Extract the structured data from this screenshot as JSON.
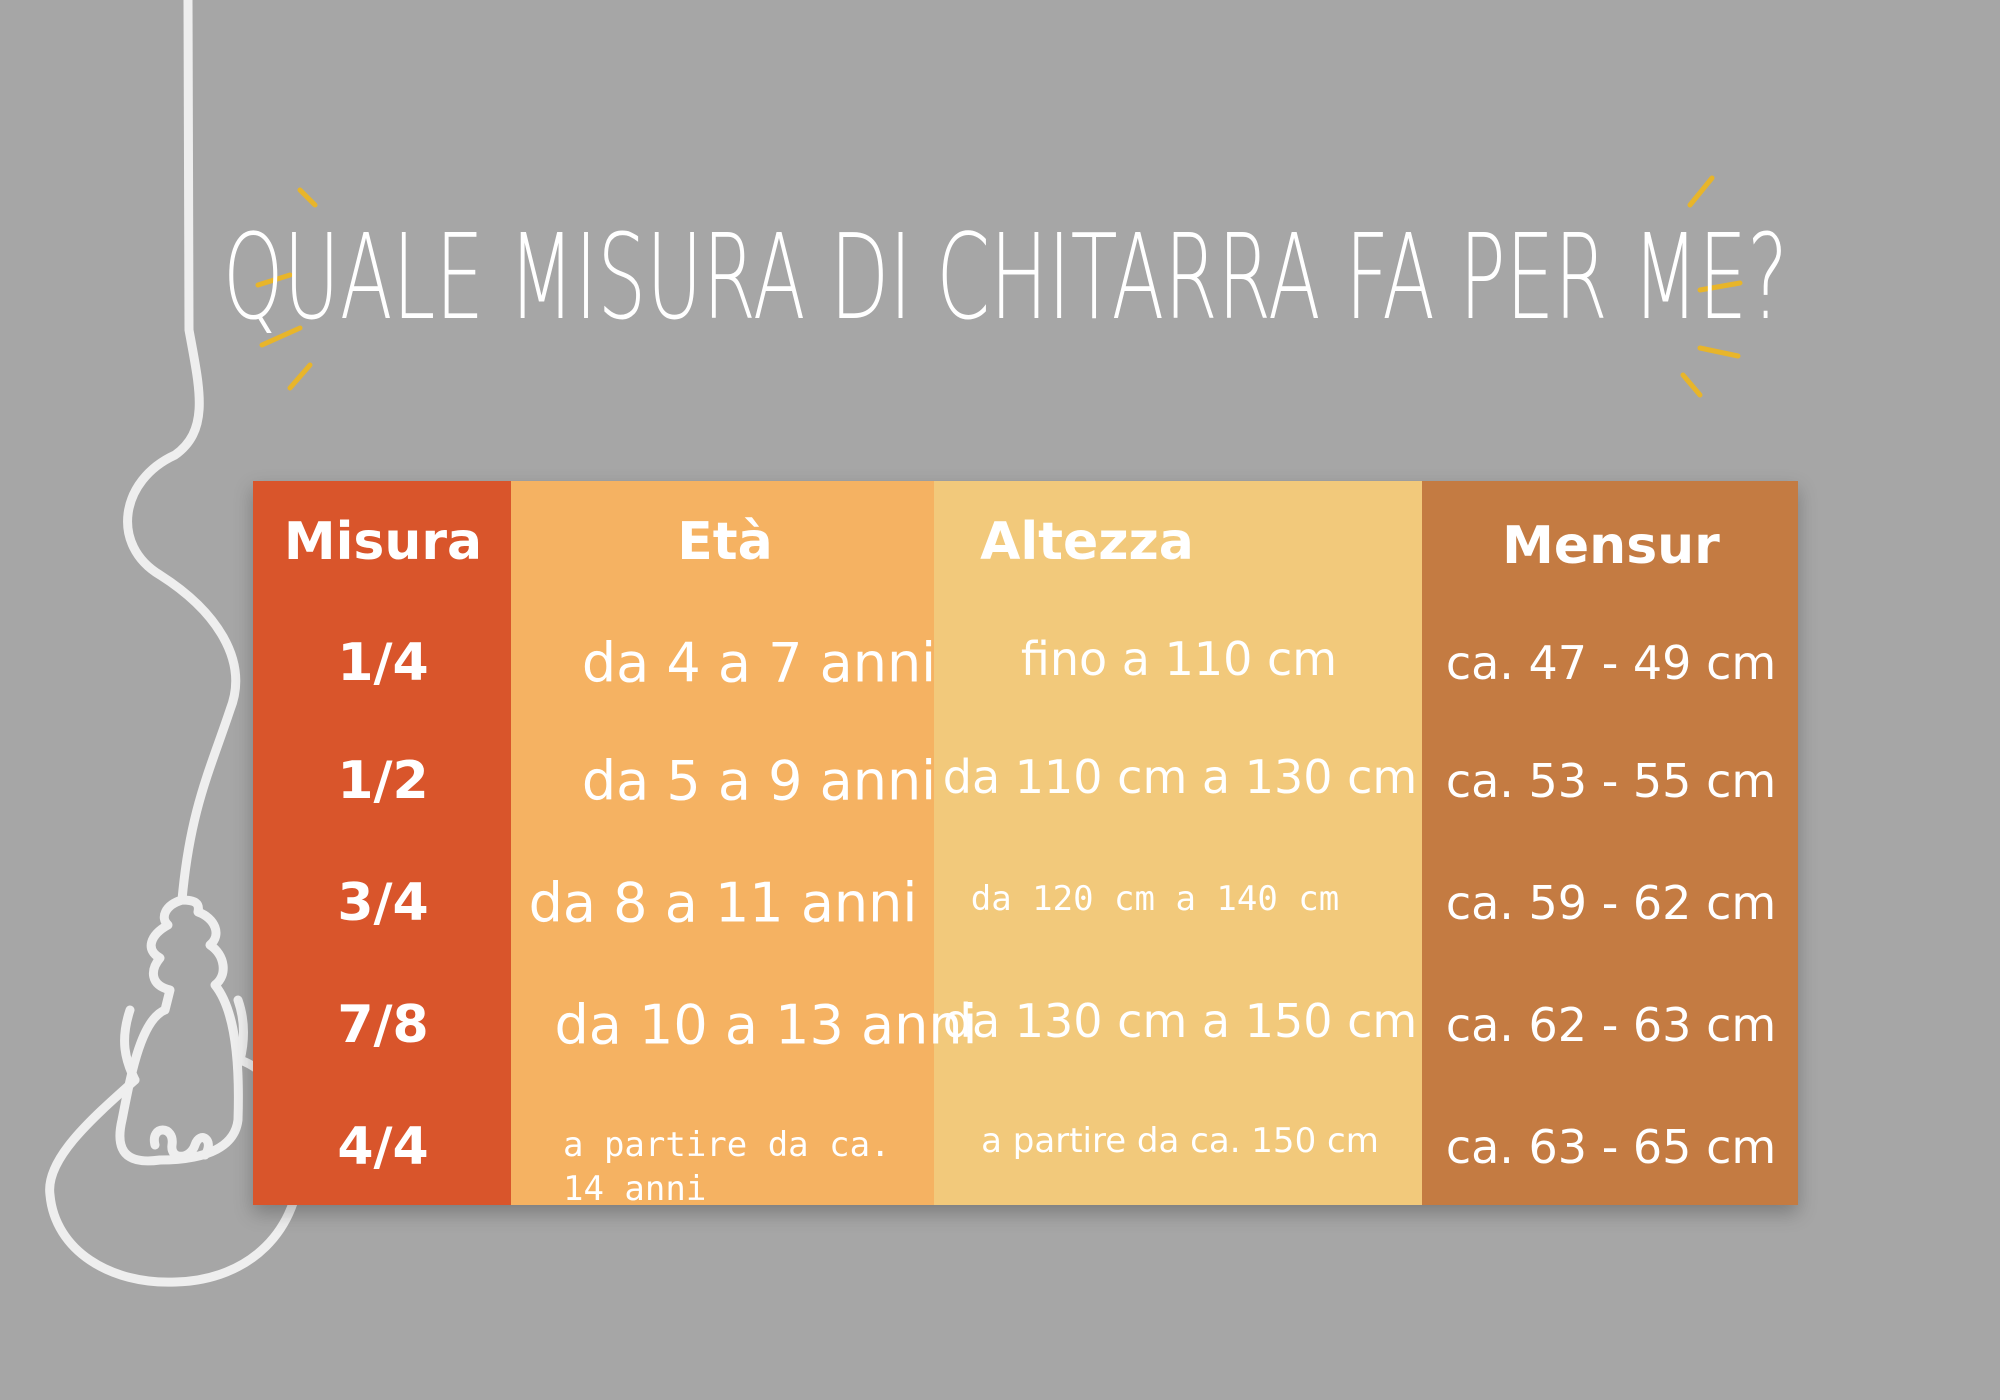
{
  "title": "QUALE MISURA DI CHITARRA FA PER ME?",
  "table": {
    "header": [
      "Misura",
      "Età",
      "Altezza",
      "Mensur"
    ],
    "rows": [
      [
        "1/4",
        "da 4 a 7 anni",
        "fino a 110 cm",
        "ca. 47 - 49 cm"
      ],
      [
        "1/2",
        "da 5 a 9 anni",
        "da 110 cm a 130 cm",
        "ca. 53 - 55 cm"
      ],
      [
        "3/4",
        "da 8 a 11 anni",
        "da 120 cm a 140 cm",
        "ca. 59 - 62 cm"
      ],
      [
        "7/8",
        "da 10 a 13 anni",
        "da 130 cm a 150 cm",
        "ca. 62 - 63 cm"
      ],
      [
        "4/4",
        "a partire da ca. 14 anni",
        "a partire da ca. 150 cm",
        "ca. 63 - 65 cm"
      ]
    ]
  }
}
